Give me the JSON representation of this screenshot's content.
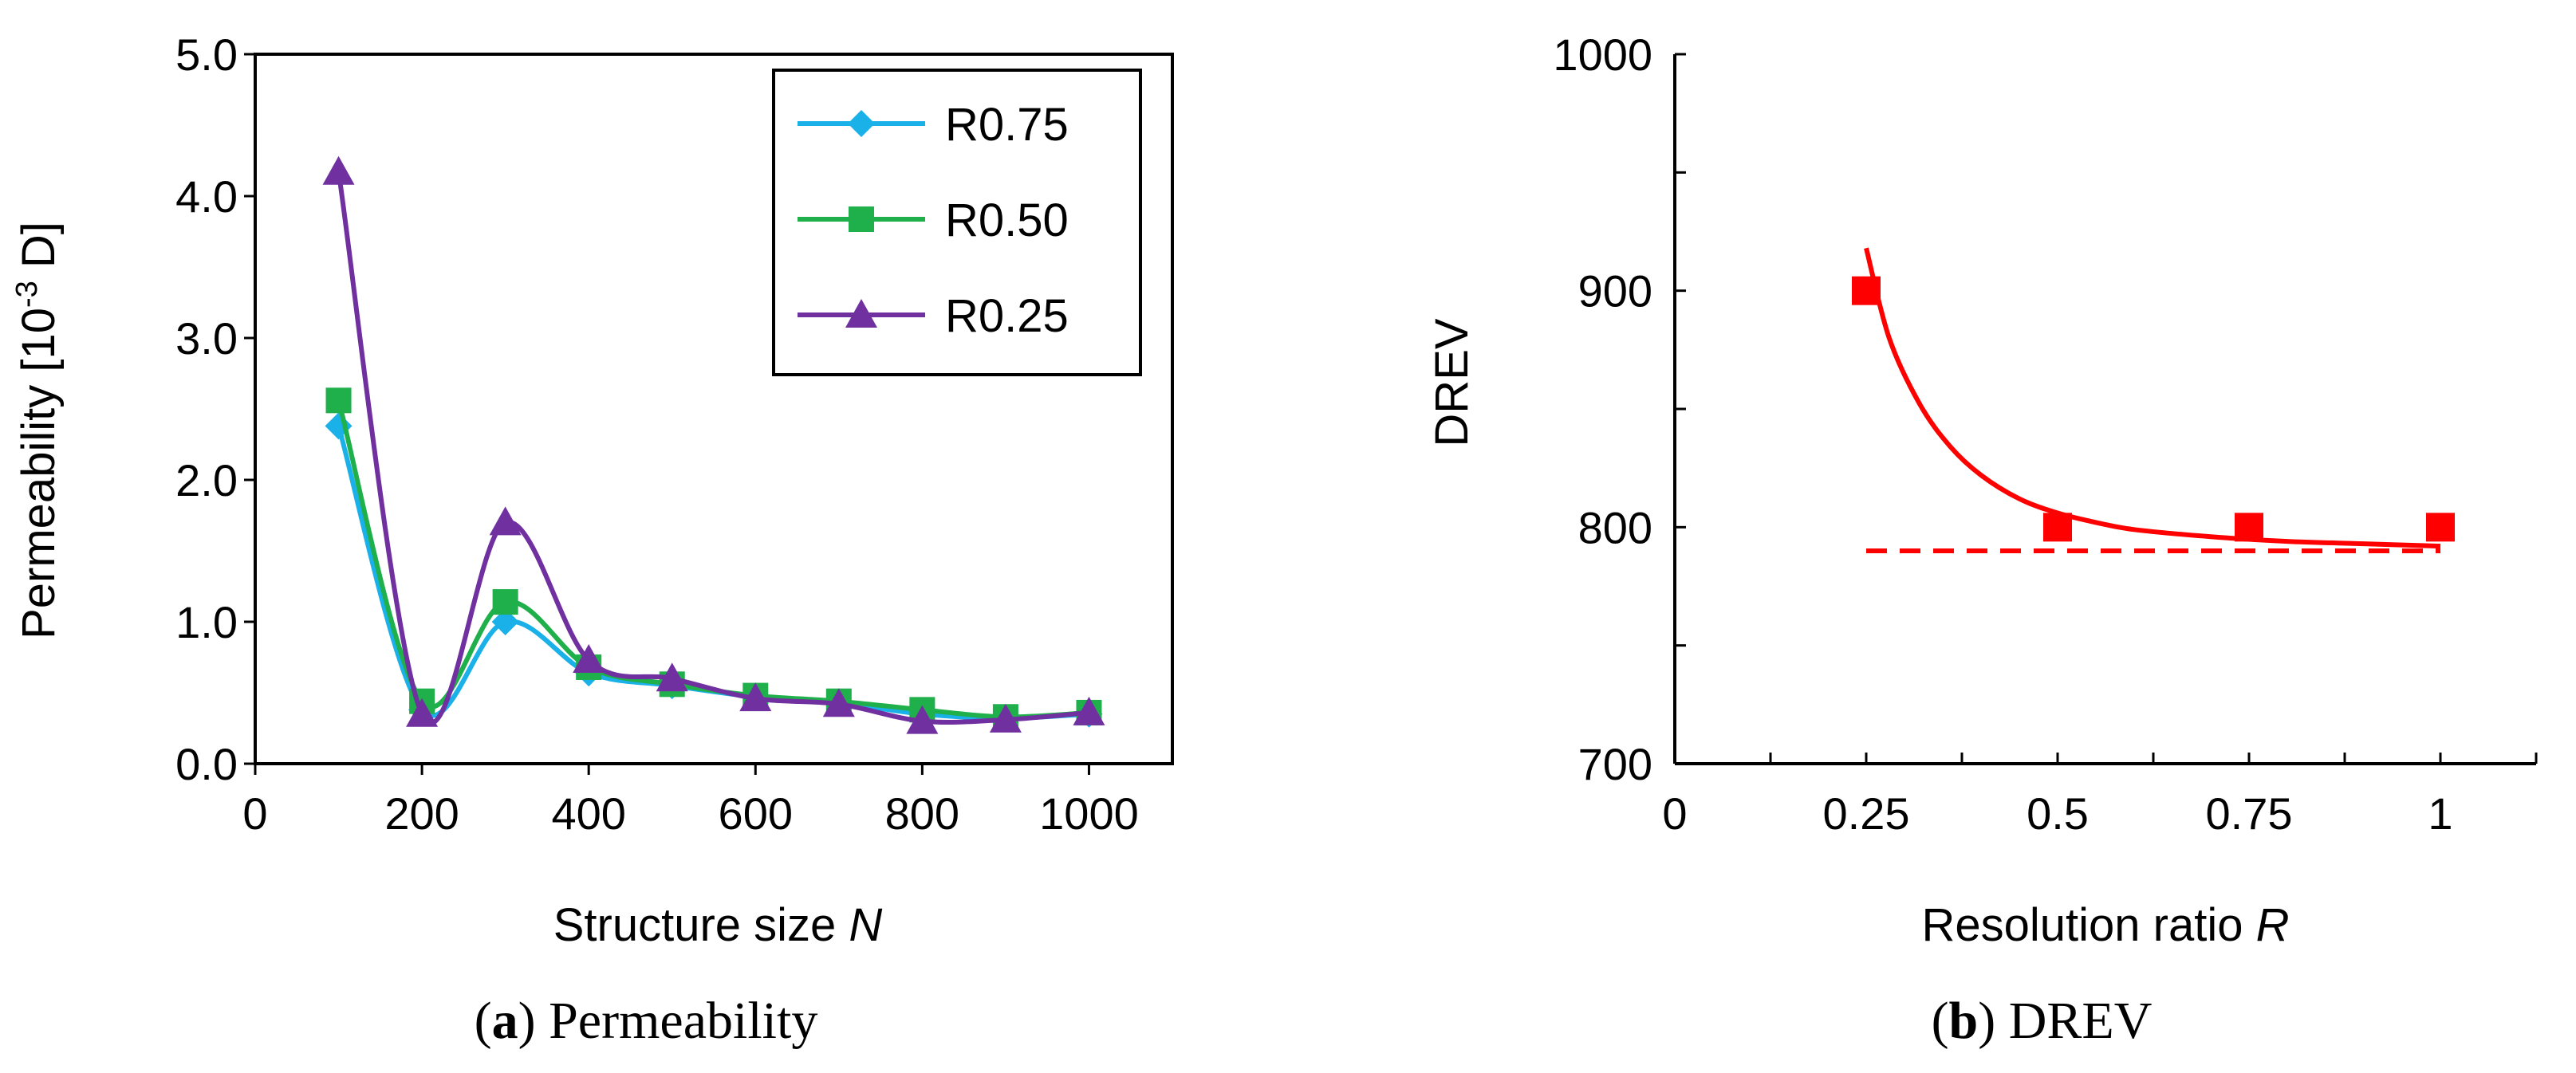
{
  "chart_data": [
    {
      "id": "a",
      "type": "line",
      "caption_letter": "a",
      "caption_text": " Permeability",
      "xlabel": "Structure size ",
      "xlabel_var": "N",
      "ylabel_prefix": "Permeability [10",
      "ylabel_exp": "-3",
      "ylabel_suffix": " D]",
      "xlim": [
        0,
        1100
      ],
      "ylim": [
        0,
        5
      ],
      "xticks": [
        0,
        200,
        400,
        600,
        800,
        1000
      ],
      "xtick_labels": [
        "0",
        "200",
        "400",
        "600",
        "800",
        "1000"
      ],
      "yticks": [
        0,
        1,
        2,
        3,
        4,
        5
      ],
      "ytick_labels": [
        "0.0",
        "1.0",
        "2.0",
        "3.0",
        "4.0",
        "5.0"
      ],
      "x": [
        100,
        200,
        300,
        400,
        500,
        600,
        700,
        800,
        900,
        1000
      ],
      "legend_position": "top-right",
      "series": [
        {
          "name": "R0.75",
          "color": "#1ab0e8",
          "marker": "diamond",
          "values": [
            2.38,
            0.38,
            1.0,
            0.64,
            0.55,
            0.47,
            0.43,
            0.35,
            0.32,
            0.35
          ]
        },
        {
          "name": "R0.50",
          "color": "#1fb04b",
          "marker": "square",
          "values": [
            2.56,
            0.44,
            1.14,
            0.68,
            0.56,
            0.48,
            0.44,
            0.38,
            0.33,
            0.36
          ]
        },
        {
          "name": "R0.25",
          "color": "#7030a0",
          "marker": "triangle",
          "values": [
            4.17,
            0.35,
            1.7,
            0.73,
            0.6,
            0.46,
            0.42,
            0.3,
            0.31,
            0.36
          ]
        }
      ]
    },
    {
      "id": "b",
      "type": "scatter",
      "caption_letter": "b",
      "caption_text": " DREV",
      "xlabel": "Resolution ratio ",
      "xlabel_var": "R",
      "ylabel": "DREV",
      "xlim": [
        0,
        1.125
      ],
      "ylim": [
        700,
        1000
      ],
      "xticks": [
        0,
        0.25,
        0.5,
        0.75,
        1
      ],
      "xtick_labels": [
        "0",
        "0.25",
        "0.5",
        "0.75",
        "1"
      ],
      "yticks": [
        700,
        800,
        900,
        1000
      ],
      "ytick_labels": [
        "700",
        "800",
        "900",
        "1000"
      ],
      "color": "#ff0000",
      "points": {
        "x": [
          0.25,
          0.5,
          0.75,
          1.0
        ],
        "y": [
          900,
          800,
          800,
          800
        ]
      },
      "fit_curve": {
        "x": [
          0.25,
          0.28,
          0.32,
          0.36,
          0.4,
          0.45,
          0.5,
          0.55,
          0.6,
          0.7,
          0.8,
          0.9,
          1.0
        ],
        "y": [
          918,
          880,
          852,
          834,
          822,
          812,
          806,
          802,
          799,
          796,
          794,
          793,
          792
        ]
      },
      "asymptote": {
        "x": [
          0.25,
          1.0
        ],
        "y": 790
      }
    }
  ]
}
